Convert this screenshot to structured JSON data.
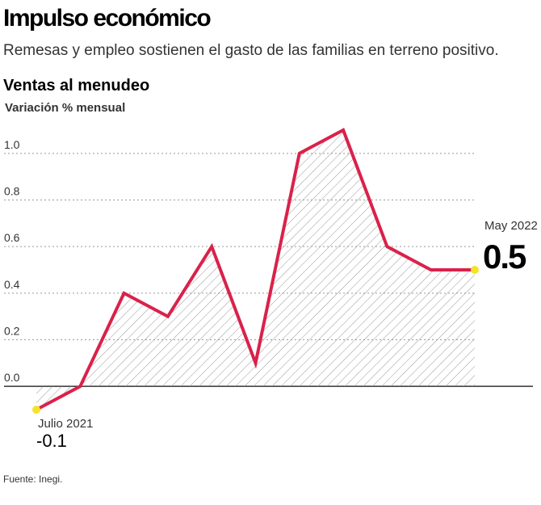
{
  "chart_data": {
    "type": "line",
    "title": "Impulso económico",
    "subtitle": "Remesas y empleo sostienen el gasto de las familias en terreno positivo.",
    "chart_title": "Ventas al menudeo",
    "y_label": "Variación % mensual",
    "source": "Fuente: Inegi.",
    "categories": [
      "Julio 2021",
      null,
      null,
      null,
      null,
      null,
      null,
      null,
      null,
      null,
      "May 2022"
    ],
    "values": [
      -0.1,
      0.0,
      0.4,
      0.3,
      0.6,
      0.1,
      1.0,
      1.1,
      0.6,
      0.5,
      0.5
    ],
    "color": "#d9224a",
    "ylim": [
      -0.1,
      1.1
    ],
    "yticks": [
      {
        "value": 0,
        "label": "0.0"
      },
      0.2,
      0.4,
      0.6,
      0.8,
      {
        "value": 1.0,
        "label": "1.0"
      }
    ],
    "grid": true
  }
}
